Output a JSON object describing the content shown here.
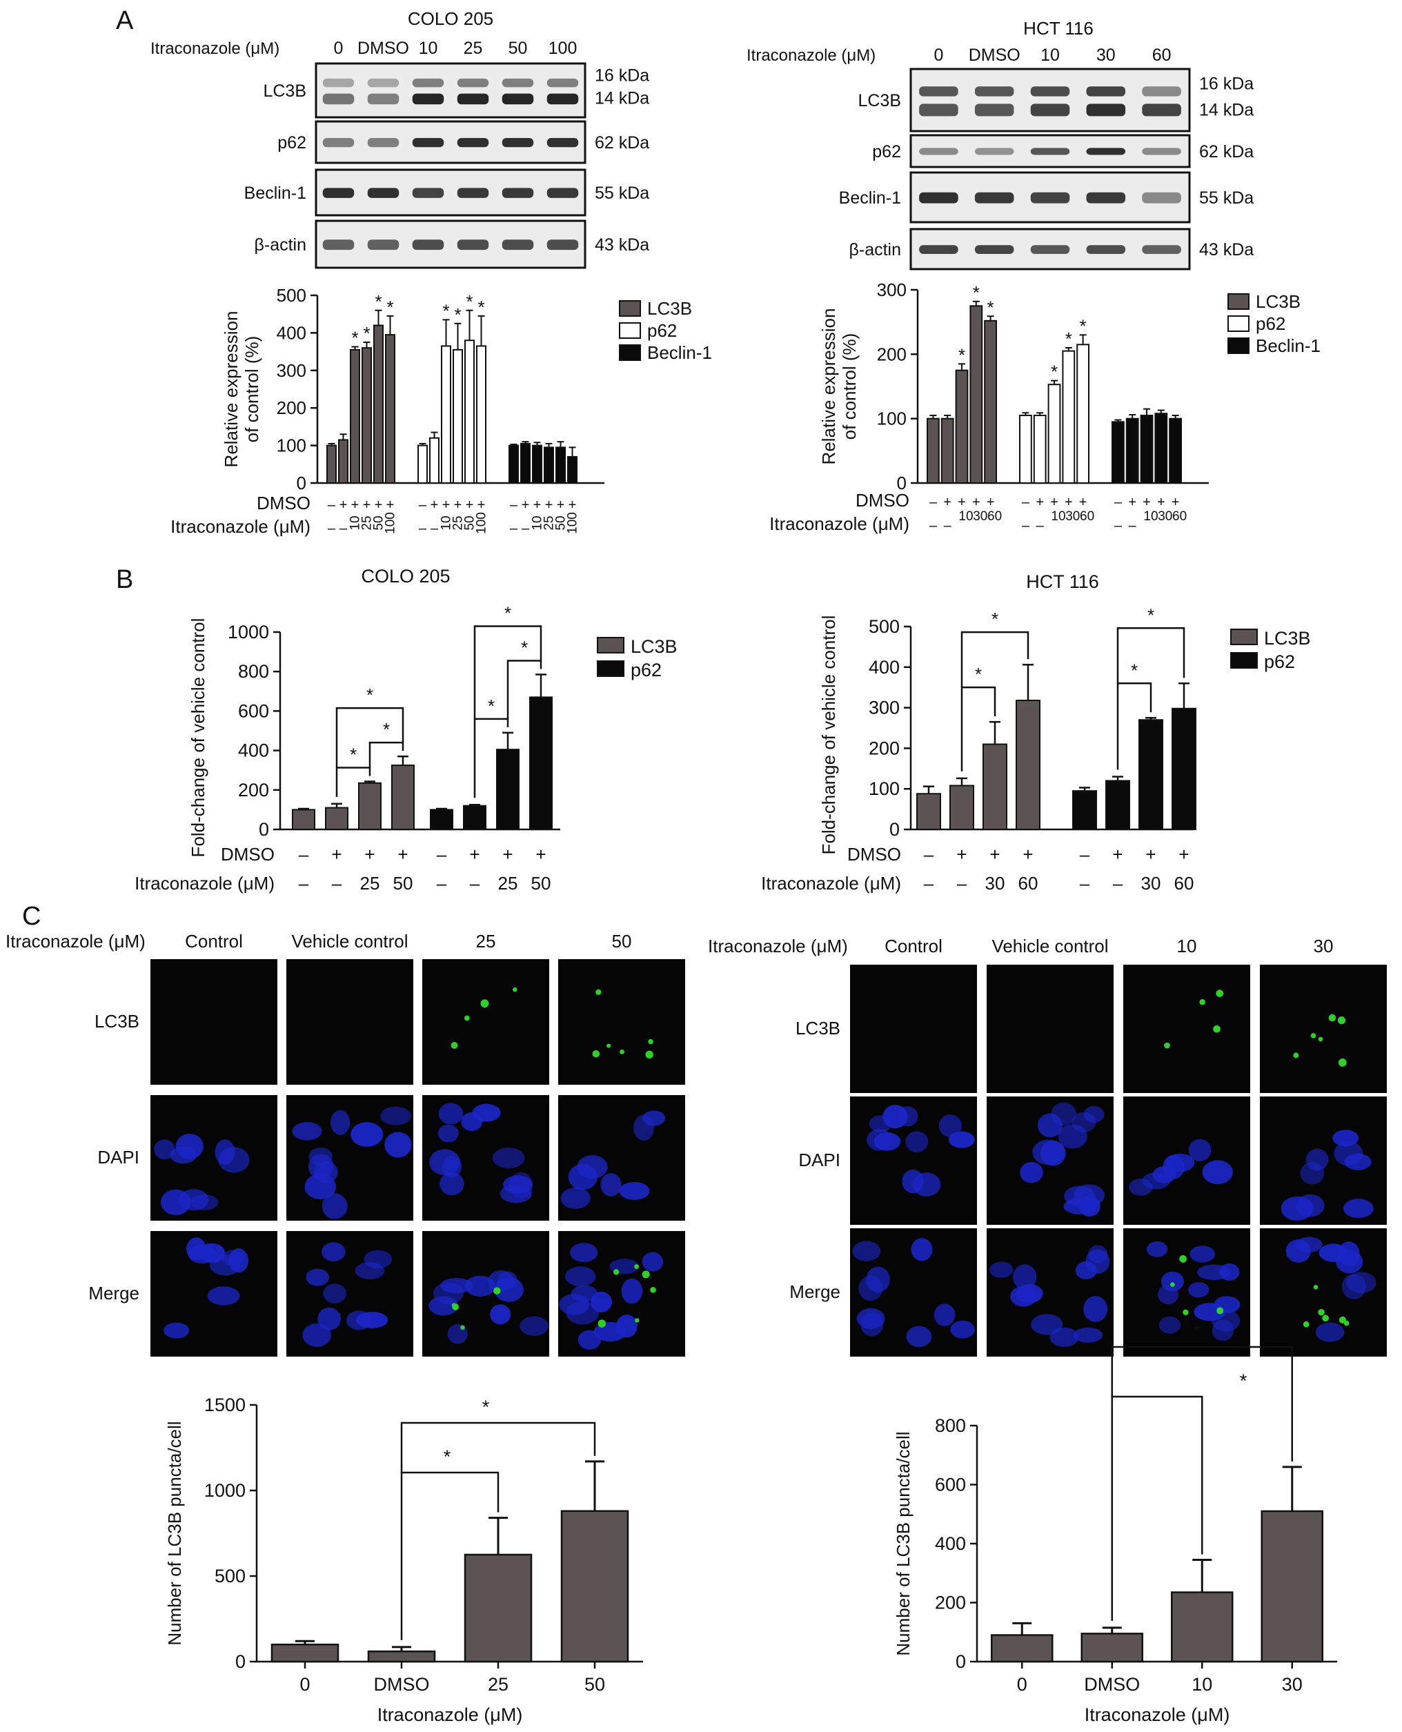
{
  "panels": {
    "A": "A",
    "B": "B",
    "C": "C"
  },
  "common": {
    "itra_label": "Itraconazole (μM)",
    "dmso_label": "DMSO",
    "plus": "+",
    "minus": "–",
    "asterisk": "*",
    "rel_expr_ylabel_1": "Relative expression",
    "rel_expr_ylabel_2": "of control (%)",
    "fold_ylabel": "Fold-change of vehicle control",
    "puncta_ylabel": "Number of LC3B puncta/cell",
    "itra_xlabel": "Itraconazole (μM)"
  },
  "colors": {
    "grey": "#5b5354",
    "black": "#0a0a0a",
    "white": "#ffffff",
    "blot_bg": "#ececec",
    "band": "#262626"
  },
  "panelA": {
    "left": {
      "title": "COLO 205",
      "lanes": [
        "0",
        "DMSO",
        "10",
        "25",
        "50",
        "100"
      ],
      "blots": [
        {
          "label": "LC3B",
          "sizes": [
            "16 kDa",
            "14 kDa"
          ],
          "int_top": [
            0.35,
            0.35,
            0.55,
            0.55,
            0.55,
            0.55
          ],
          "int_bot": [
            0.6,
            0.55,
            1,
            1,
            1,
            1
          ]
        },
        {
          "label": "p62",
          "sizes": [
            "62 kDa"
          ],
          "int": [
            0.55,
            0.55,
            0.95,
            0.95,
            0.95,
            0.95
          ]
        },
        {
          "label": "Beclin-1",
          "sizes": [
            "55 kDa"
          ],
          "int": [
            0.95,
            0.95,
            0.85,
            0.9,
            0.9,
            0.9
          ]
        },
        {
          "label": "β-actin",
          "sizes": [
            "43 kDa"
          ],
          "int": [
            0.7,
            0.7,
            0.8,
            0.8,
            0.8,
            0.8
          ]
        }
      ],
      "legend": [
        "LC3B",
        "p62",
        "Beclin-1"
      ],
      "chart": {
        "type": "bar",
        "ylim": [
          0,
          500
        ],
        "yticks": [
          0,
          100,
          200,
          300,
          400,
          500
        ],
        "series": [
          {
            "name": "LC3B",
            "color": "grey",
            "values": [
              100,
              115,
              355,
              360,
              420,
              395
            ],
            "err": [
              5,
              15,
              8,
              15,
              40,
              50
            ],
            "sig": [
              false,
              false,
              true,
              true,
              true,
              true
            ]
          },
          {
            "name": "p62",
            "color": "white",
            "values": [
              100,
              120,
              365,
              355,
              380,
              365
            ],
            "err": [
              5,
              15,
              70,
              70,
              80,
              80
            ],
            "sig": [
              false,
              false,
              true,
              true,
              true,
              true
            ]
          },
          {
            "name": "Beclin-1",
            "color": "black",
            "values": [
              100,
              105,
              100,
              95,
              95,
              70
            ],
            "err": [
              3,
              5,
              8,
              10,
              15,
              25
            ],
            "sig": [
              false,
              false,
              false,
              false,
              false,
              false
            ]
          }
        ],
        "dmso": [
          "–",
          "+",
          "+",
          "+",
          "+",
          "+"
        ],
        "itra": [
          "–",
          "–",
          "10",
          "25",
          "50",
          "100"
        ]
      }
    },
    "right": {
      "title": "HCT 116",
      "lanes": [
        "0",
        "DMSO",
        "10",
        "30",
        "60"
      ],
      "blots": [
        {
          "label": "LC3B",
          "sizes": [
            "16 kDa",
            "14 kDa"
          ],
          "int_top": [
            0.75,
            0.75,
            0.8,
            0.85,
            0.5
          ],
          "int_bot": [
            0.75,
            0.75,
            0.85,
            0.95,
            0.85
          ]
        },
        {
          "label": "p62",
          "sizes": [
            "62 kDa"
          ],
          "int": [
            0.5,
            0.45,
            0.75,
            0.95,
            0.5
          ]
        },
        {
          "label": "Beclin-1",
          "sizes": [
            "55 kDa"
          ],
          "int": [
            0.95,
            0.9,
            0.85,
            0.9,
            0.5
          ]
        },
        {
          "label": "β-actin",
          "sizes": [
            "43 kDa"
          ],
          "int": [
            0.85,
            0.85,
            0.75,
            0.8,
            0.7
          ]
        }
      ],
      "legend": [
        "LC3B",
        "p62",
        "Beclin-1"
      ],
      "chart": {
        "type": "bar",
        "ylim": [
          0,
          300
        ],
        "yticks": [
          0,
          100,
          200,
          300
        ],
        "series": [
          {
            "name": "LC3B",
            "color": "grey",
            "values": [
              100,
              100,
              175,
              275,
              252
            ],
            "err": [
              5,
              5,
              10,
              7,
              7
            ],
            "sig": [
              false,
              false,
              true,
              true,
              true
            ]
          },
          {
            "name": "p62",
            "color": "white",
            "values": [
              105,
              105,
              153,
              205,
              215
            ],
            "err": [
              4,
              4,
              6,
              5,
              15
            ],
            "sig": [
              false,
              false,
              true,
              true,
              true
            ]
          },
          {
            "name": "Beclin-1",
            "color": "black",
            "values": [
              95,
              100,
              105,
              108,
              100
            ],
            "err": [
              3,
              6,
              10,
              5,
              5
            ],
            "sig": [
              false,
              false,
              false,
              false,
              false
            ]
          }
        ],
        "dmso": [
          "–",
          "+",
          "+",
          "+",
          "+"
        ],
        "itra": [
          "–",
          "–",
          "10",
          "30",
          "60"
        ]
      }
    }
  },
  "panelB": {
    "left": {
      "title": "COLO 205",
      "legend": [
        "LC3B",
        "p62"
      ],
      "chart": {
        "type": "bar",
        "ylim": [
          0,
          1000
        ],
        "yticks": [
          0,
          200,
          400,
          600,
          800,
          1000
        ],
        "series": [
          {
            "name": "LC3B",
            "color": "grey",
            "values": [
              100,
              110,
              235,
              325
            ],
            "err": [
              5,
              20,
              8,
              45
            ]
          },
          {
            "name": "p62",
            "color": "black",
            "values": [
              100,
              120,
              405,
              670
            ],
            "err": [
              5,
              5,
              85,
              115
            ]
          }
        ],
        "dmso": [
          "–",
          "+",
          "+",
          "+"
        ],
        "itra": [
          "–",
          "–",
          "25",
          "50"
        ]
      }
    },
    "right": {
      "title": "HCT 116",
      "legend": [
        "LC3B",
        "p62"
      ],
      "chart": {
        "type": "bar",
        "ylim": [
          0,
          500
        ],
        "yticks": [
          0,
          100,
          200,
          300,
          400,
          500
        ],
        "series": [
          {
            "name": "LC3B",
            "color": "grey",
            "values": [
              88,
              108,
              210,
              318
            ],
            "err": [
              18,
              18,
              55,
              88
            ]
          },
          {
            "name": "p62",
            "color": "black",
            "values": [
              95,
              120,
              270,
              298
            ],
            "err": [
              8,
              10,
              5,
              62
            ]
          }
        ],
        "dmso": [
          "–",
          "+",
          "+",
          "+"
        ],
        "itra": [
          "–",
          "–",
          "30",
          "60"
        ]
      }
    }
  },
  "panelC": {
    "left": {
      "columns": [
        "Control",
        "Vehicle control",
        "25",
        "50"
      ],
      "rows": [
        "LC3B",
        "DAPI",
        "Merge"
      ],
      "chart": {
        "type": "bar",
        "ylim": [
          0,
          1500
        ],
        "yticks": [
          0,
          500,
          1000,
          1500
        ],
        "categories": [
          "0",
          "DMSO",
          "25",
          "50"
        ],
        "values": [
          100,
          60,
          625,
          880
        ],
        "err": [
          20,
          25,
          215,
          290
        ]
      }
    },
    "right": {
      "columns": [
        "Control",
        "Vehicle control",
        "10",
        "30"
      ],
      "rows": [
        "LC3B",
        "DAPI",
        "Merge"
      ],
      "chart": {
        "type": "bar",
        "ylim": [
          0,
          800
        ],
        "yticks": [
          0,
          200,
          400,
          600,
          800
        ],
        "categories": [
          "0",
          "DMSO",
          "10",
          "30"
        ],
        "values": [
          90,
          95,
          235,
          510
        ],
        "err": [
          40,
          20,
          110,
          150
        ]
      }
    }
  }
}
